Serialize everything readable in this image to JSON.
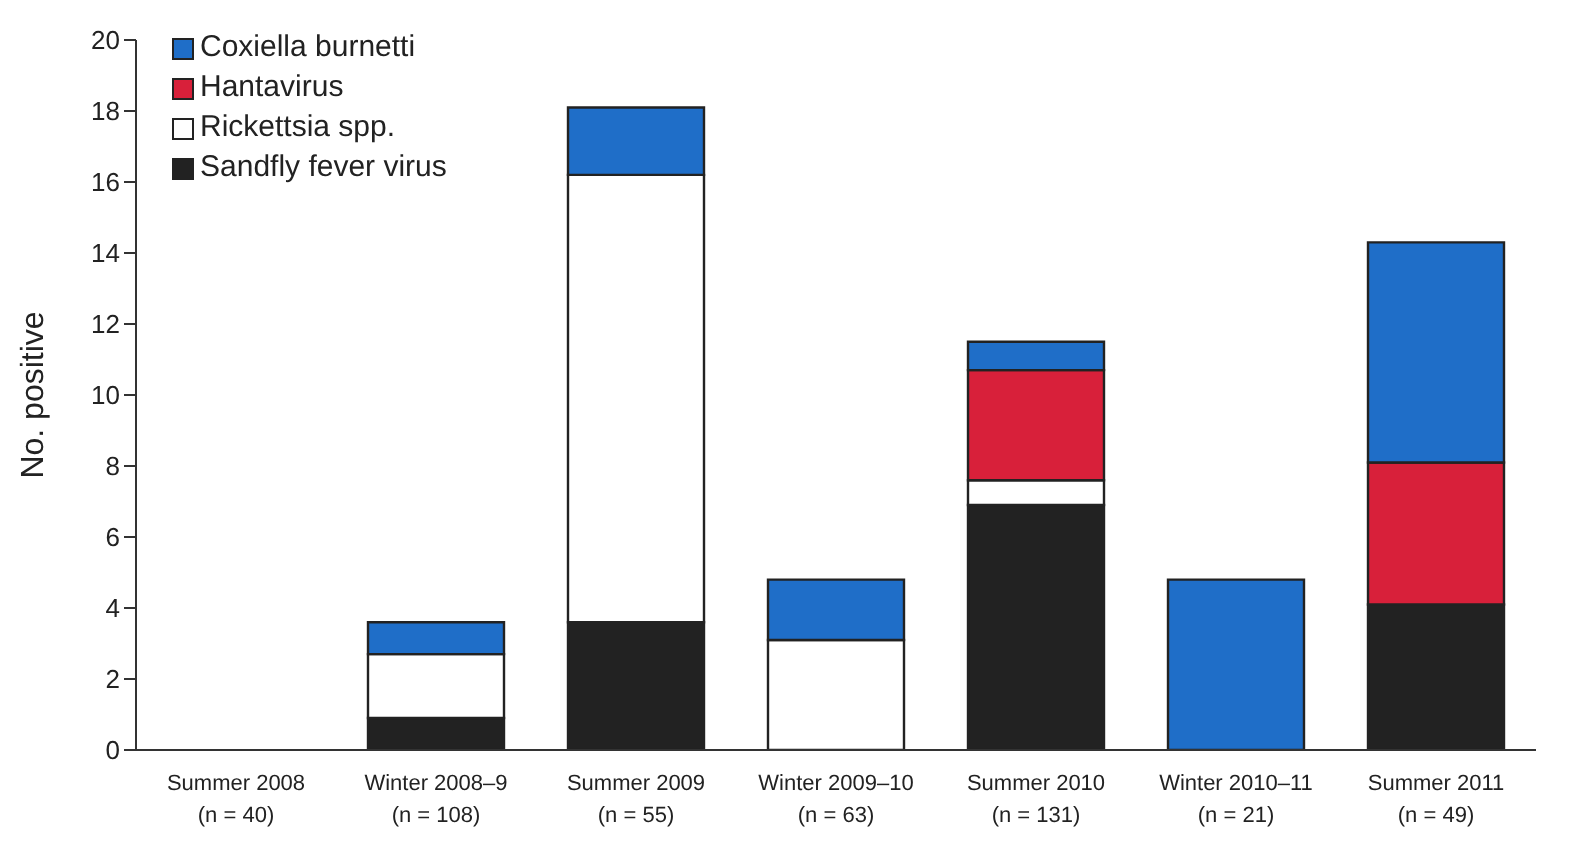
{
  "chart_data": {
    "type": "bar",
    "stacked": true,
    "ylabel": "No. positive",
    "categories": [
      "Summer 2008\n(n = 40)",
      "Winter 2008–9\n(n = 108)",
      "Summer 2009\n(n = 55)",
      "Winter 2009–10\n(n = 63)",
      "Summer 2010\n(n = 131)",
      "Winter 2010–11\n(n = 21)",
      "Summer 2011\n(n = 49)"
    ],
    "series": [
      {
        "name": "Sandfly fever virus",
        "color": "#222222",
        "values": [
          0,
          0.9,
          3.6,
          0,
          6.9,
          0,
          4.1
        ]
      },
      {
        "name": "Rickettsia spp.",
        "color": "#ffffff",
        "values": [
          0,
          1.8,
          12.6,
          3.1,
          0.7,
          0,
          0
        ]
      },
      {
        "name": "Hantavirus",
        "color": "#d8203a",
        "values": [
          0,
          0,
          0,
          0,
          3.1,
          0,
          4.0
        ]
      },
      {
        "name": "Coxiella burnetti",
        "color": "#1f6ec8",
        "values": [
          0,
          0.9,
          1.9,
          1.7,
          0.8,
          4.8,
          6.2
        ]
      }
    ],
    "ylim": [
      0,
      20
    ],
    "yticks": [
      0,
      2,
      4,
      6,
      8,
      10,
      12,
      14,
      16,
      18,
      20
    ],
    "grid": false,
    "legend": "top left"
  }
}
